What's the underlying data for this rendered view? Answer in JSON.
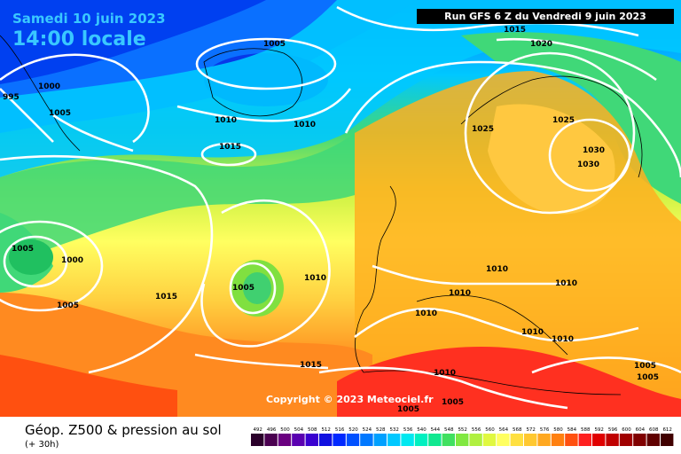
{
  "header": {
    "date": "Samedi 10 juin 2023",
    "time": "14:00 locale",
    "run": "Run GFS 6 Z du Vendredi 9 juin 2023"
  },
  "copyright": "Copyright © 2023 Meteociel.fr",
  "footer": {
    "title": "Géop. Z500 & pression au sol",
    "subtitle": "(+ 30h)"
  },
  "scale": {
    "labels": [
      "492",
      "496",
      "500",
      "504",
      "508",
      "512",
      "516",
      "520",
      "524",
      "528",
      "532",
      "536",
      "540",
      "544",
      "548",
      "552",
      "556",
      "560",
      "564",
      "568",
      "572",
      "576",
      "580",
      "584",
      "588",
      "592",
      "596",
      "600",
      "604",
      "608",
      "612"
    ],
    "colors": [
      "#2a002a",
      "#4a0050",
      "#6a0080",
      "#5a00b0",
      "#3a00d0",
      "#1010e0",
      "#0028ff",
      "#0050ff",
      "#0078ff",
      "#00a0ff",
      "#00c8ff",
      "#00e8f0",
      "#00f0c0",
      "#10e890",
      "#40e060",
      "#80e840",
      "#b0f040",
      "#e0f840",
      "#ffff60",
      "#ffe040",
      "#ffc830",
      "#ffa820",
      "#ff8010",
      "#ff5010",
      "#ff2020",
      "#e00000",
      "#c00000",
      "#a00000",
      "#800000",
      "#600000",
      "#400000"
    ]
  },
  "isobars": [
    "1015",
    "1020",
    "1005",
    "1000",
    "995",
    "1005",
    "1010",
    "1010",
    "1015",
    "1025",
    "1030",
    "1030",
    "1025",
    "1005",
    "1000",
    "1005",
    "1015",
    "1005",
    "1010",
    "1010",
    "1010",
    "1010",
    "1010",
    "1010",
    "1015",
    "1010",
    "1005",
    "1005",
    "1005",
    "1005"
  ],
  "map": {
    "colors": {
      "blue_deep": "#0838e8",
      "blue": "#0a70ff",
      "cyan": "#00c8ff",
      "green": "#40d878",
      "yellow_green": "#c8f040",
      "yellow": "#ffff60",
      "orange": "#ffb020",
      "red": "#ff3020"
    }
  }
}
